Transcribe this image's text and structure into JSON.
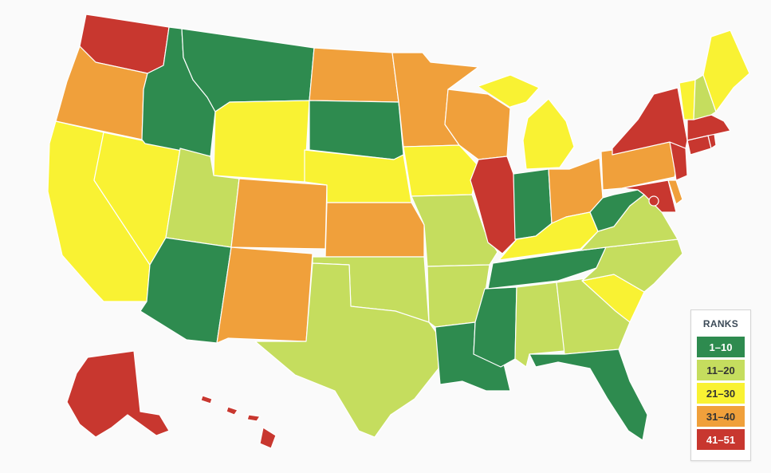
{
  "legend": {
    "title": "RANKS",
    "items": [
      {
        "label": "1–10",
        "color": "#2e8b4f",
        "text_color": "#ffffff"
      },
      {
        "label": "11–20",
        "color": "#c5dd5e",
        "text_color": "#333333"
      },
      {
        "label": "21–30",
        "color": "#f9f233",
        "text_color": "#333333"
      },
      {
        "label": "31–40",
        "color": "#f0a03b",
        "text_color": "#333333"
      },
      {
        "label": "41–51",
        "color": "#c8372f",
        "text_color": "#ffffff"
      }
    ]
  },
  "states": [
    {
      "name": "WA",
      "rank_group": "41–51",
      "color": "#c8372f"
    },
    {
      "name": "OR",
      "rank_group": "31–40",
      "color": "#f0a03b"
    },
    {
      "name": "CA",
      "rank_group": "21–30",
      "color": "#f9f233"
    },
    {
      "name": "NV",
      "rank_group": "21–30",
      "color": "#f9f233"
    },
    {
      "name": "ID",
      "rank_group": "1–10",
      "color": "#2e8b4f"
    },
    {
      "name": "MT",
      "rank_group": "1–10",
      "color": "#2e8b4f"
    },
    {
      "name": "WY",
      "rank_group": "21–30",
      "color": "#f9f233"
    },
    {
      "name": "UT",
      "rank_group": "11–20",
      "color": "#c5dd5e"
    },
    {
      "name": "AZ",
      "rank_group": "1–10",
      "color": "#2e8b4f"
    },
    {
      "name": "CO",
      "rank_group": "31–40",
      "color": "#f0a03b"
    },
    {
      "name": "NM",
      "rank_group": "31–40",
      "color": "#f0a03b"
    },
    {
      "name": "ND",
      "rank_group": "31–40",
      "color": "#f0a03b"
    },
    {
      "name": "SD",
      "rank_group": "1–10",
      "color": "#2e8b4f"
    },
    {
      "name": "NE",
      "rank_group": "21–30",
      "color": "#f9f233"
    },
    {
      "name": "KS",
      "rank_group": "31–40",
      "color": "#f0a03b"
    },
    {
      "name": "OK",
      "rank_group": "11–20",
      "color": "#c5dd5e"
    },
    {
      "name": "TX",
      "rank_group": "11–20",
      "color": "#c5dd5e"
    },
    {
      "name": "MN",
      "rank_group": "31–40",
      "color": "#f0a03b"
    },
    {
      "name": "IA",
      "rank_group": "21–30",
      "color": "#f9f233"
    },
    {
      "name": "MO",
      "rank_group": "11–20",
      "color": "#c5dd5e"
    },
    {
      "name": "AR",
      "rank_group": "11–20",
      "color": "#c5dd5e"
    },
    {
      "name": "LA",
      "rank_group": "1–10",
      "color": "#2e8b4f"
    },
    {
      "name": "WI",
      "rank_group": "31–40",
      "color": "#f0a03b"
    },
    {
      "name": "IL",
      "rank_group": "41–51",
      "color": "#c8372f"
    },
    {
      "name": "MI",
      "rank_group": "21–30",
      "color": "#f9f233"
    },
    {
      "name": "IN",
      "rank_group": "1–10",
      "color": "#2e8b4f"
    },
    {
      "name": "OH",
      "rank_group": "31–40",
      "color": "#f0a03b"
    },
    {
      "name": "KY",
      "rank_group": "21–30",
      "color": "#f9f233"
    },
    {
      "name": "TN",
      "rank_group": "1–10",
      "color": "#2e8b4f"
    },
    {
      "name": "MS",
      "rank_group": "1–10",
      "color": "#2e8b4f"
    },
    {
      "name": "AL",
      "rank_group": "11–20",
      "color": "#c5dd5e"
    },
    {
      "name": "GA",
      "rank_group": "11–20",
      "color": "#c5dd5e"
    },
    {
      "name": "FL",
      "rank_group": "1–10",
      "color": "#2e8b4f"
    },
    {
      "name": "SC",
      "rank_group": "21–30",
      "color": "#f9f233"
    },
    {
      "name": "NC",
      "rank_group": "11–20",
      "color": "#c5dd5e"
    },
    {
      "name": "VA",
      "rank_group": "11–20",
      "color": "#c5dd5e"
    },
    {
      "name": "WV",
      "rank_group": "1–10",
      "color": "#2e8b4f"
    },
    {
      "name": "MD",
      "rank_group": "41–51",
      "color": "#c8372f"
    },
    {
      "name": "DE",
      "rank_group": "31–40",
      "color": "#f0a03b"
    },
    {
      "name": "DC",
      "rank_group": "41–51",
      "color": "#c8372f"
    },
    {
      "name": "PA",
      "rank_group": "31–40",
      "color": "#f0a03b"
    },
    {
      "name": "NJ",
      "rank_group": "41–51",
      "color": "#c8372f"
    },
    {
      "name": "NY",
      "rank_group": "41–51",
      "color": "#c8372f"
    },
    {
      "name": "CT",
      "rank_group": "41–51",
      "color": "#c8372f"
    },
    {
      "name": "RI",
      "rank_group": "41–51",
      "color": "#c8372f"
    },
    {
      "name": "MA",
      "rank_group": "41–51",
      "color": "#c8372f"
    },
    {
      "name": "VT",
      "rank_group": "21–30",
      "color": "#f9f233"
    },
    {
      "name": "NH",
      "rank_group": "11–20",
      "color": "#c5dd5e"
    },
    {
      "name": "ME",
      "rank_group": "21–30",
      "color": "#f9f233"
    },
    {
      "name": "AK",
      "rank_group": "41–51",
      "color": "#c8372f"
    },
    {
      "name": "HI",
      "rank_group": "41–51",
      "color": "#c8372f"
    }
  ]
}
